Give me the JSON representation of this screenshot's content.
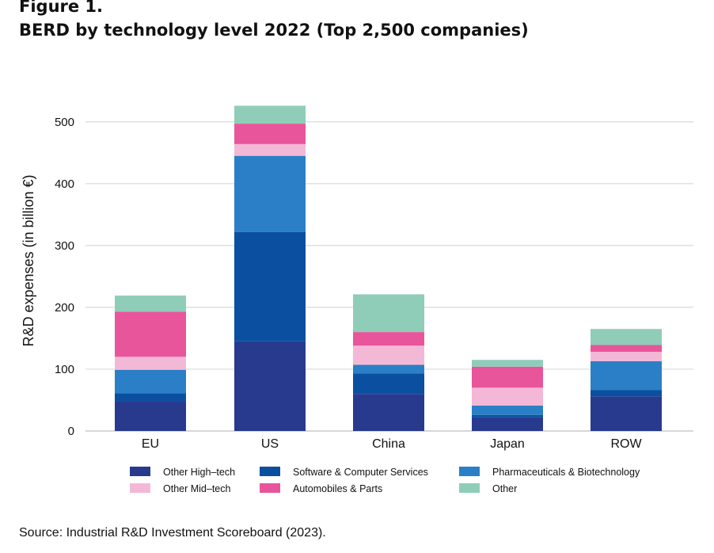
{
  "figure_label": "Figure 1.",
  "title": "BERD by technology level 2022 (Top 2,500 companies)",
  "source": "Source: Industrial R&D Investment Scoreboard (2023).",
  "chart_data": {
    "type": "bar",
    "stacked": true,
    "title": "BERD by technology level 2022 (Top 2,500 companies)",
    "xlabel": "",
    "ylabel": "R&D expenses (in billion €)",
    "ylim": [
      0,
      530
    ],
    "yticks": [
      0,
      100,
      200,
      300,
      400,
      500
    ],
    "grid": true,
    "legend_position": "bottom",
    "categories": [
      "EU",
      "US",
      "China",
      "Japan",
      "ROW"
    ],
    "series": [
      {
        "name": "Other High–tech",
        "color": "#283a8e",
        "values": [
          48,
          145,
          60,
          22,
          56
        ]
      },
      {
        "name": "Software & Computer Services",
        "color": "#0b4fa0",
        "values": [
          13,
          177,
          33,
          4,
          10
        ]
      },
      {
        "name": "Pharmaceuticals & Biotechnology",
        "color": "#2b7fc6",
        "values": [
          38,
          123,
          14,
          15,
          47
        ]
      },
      {
        "name": "Other Mid–tech",
        "color": "#f4b8d7",
        "values": [
          21,
          19,
          31,
          29,
          15
        ]
      },
      {
        "name": "Automobiles & Parts",
        "color": "#e8559a",
        "values": [
          73,
          33,
          22,
          34,
          11
        ]
      },
      {
        "name": "Other",
        "color": "#8fcdb9",
        "values": [
          26,
          29,
          61,
          11,
          26
        ]
      }
    ]
  }
}
